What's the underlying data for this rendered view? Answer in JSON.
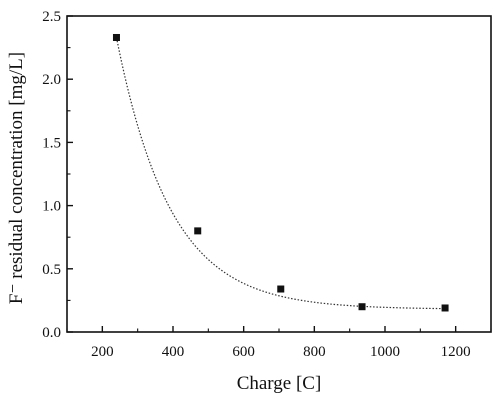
{
  "chart_data": {
    "type": "scatter",
    "xlabel": "Charge [C]",
    "ylabel": "F⁻ residual concentration [mg/L]",
    "xlim": [
      100,
      1300
    ],
    "ylim": [
      0.0,
      2.5
    ],
    "x_ticks": [
      200,
      400,
      600,
      800,
      1000,
      1200
    ],
    "y_ticks": [
      0.0,
      0.5,
      1.0,
      1.5,
      2.0,
      2.5
    ],
    "x_tick_labels": [
      "200",
      "400",
      "600",
      "800",
      "1000",
      "1200"
    ],
    "y_tick_labels": [
      "0.0",
      "0.5",
      "1.0",
      "1.5",
      "2.0",
      "2.5"
    ],
    "grid": false,
    "series": [
      {
        "marker": "square",
        "x": [
          240,
          470,
          705,
          935,
          1170
        ],
        "y": [
          2.33,
          0.8,
          0.34,
          0.2,
          0.19
        ]
      }
    ],
    "fit_curve": {
      "style": "dotted",
      "shape": "exponential decay"
    },
    "colors": {
      "axis": "#111111",
      "marker": "#111111",
      "curve": "#333333"
    }
  }
}
